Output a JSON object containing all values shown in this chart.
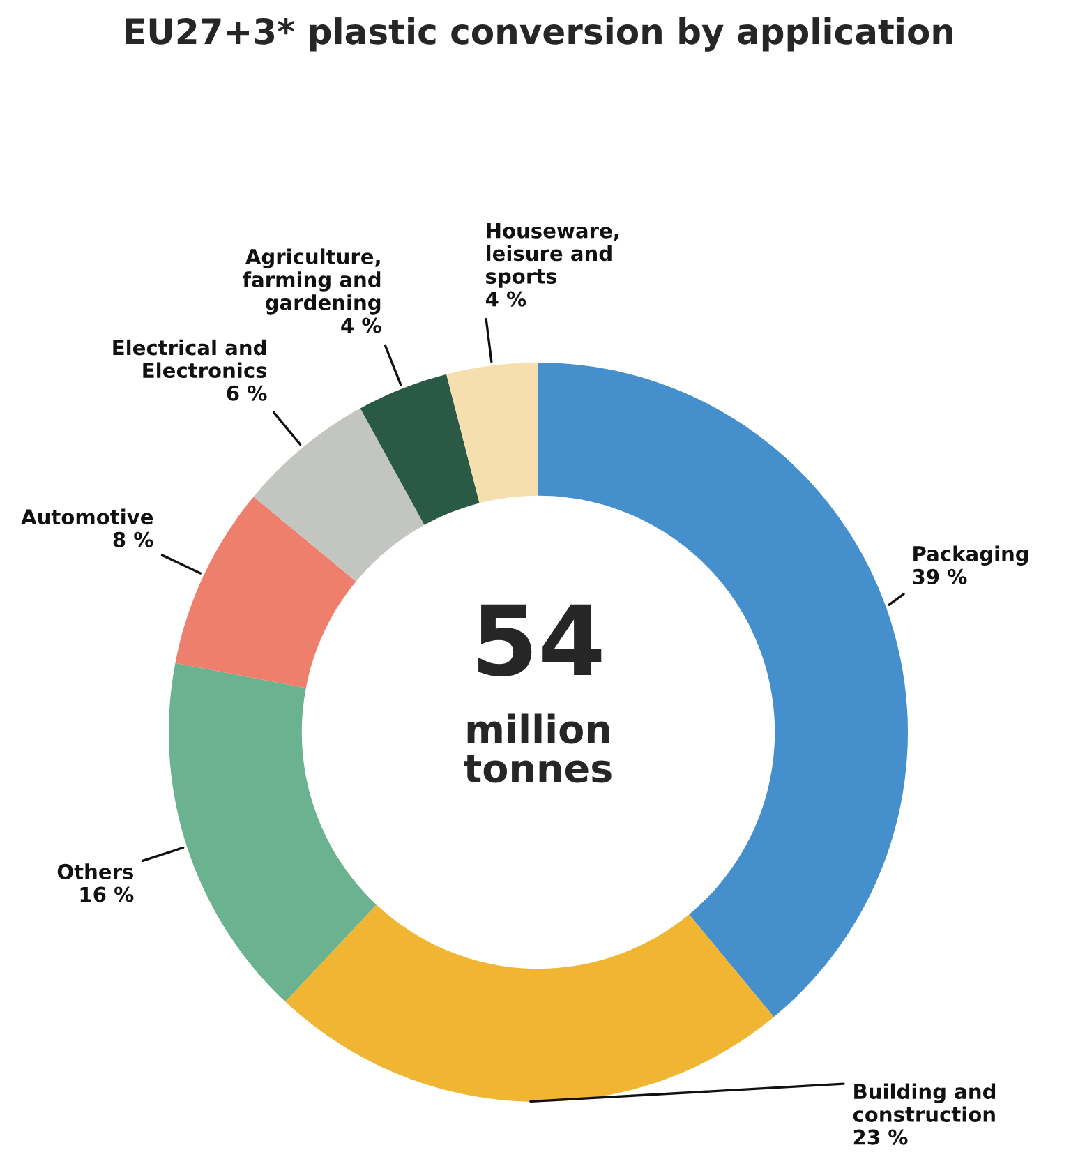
{
  "chart_data": {
    "type": "donut",
    "title": "EU27+3* plastic conversion by application",
    "categories": [
      "Packaging",
      "Building and\nconstruction",
      "Others",
      "Automotive",
      "Electrical and\nElectronics",
      "Agriculture,\nfarming and\ngardening",
      "Houseware,\nleisure and\nsports"
    ],
    "values": [
      39,
      23,
      16,
      8,
      6,
      4,
      4
    ],
    "value_labels": [
      "39 %",
      "23 %",
      "16 %",
      "8 %",
      "6 %",
      "4 %",
      "4 %"
    ],
    "colors": [
      "#448fcc",
      "#f0b532",
      "#6bb290",
      "#ef7f6d",
      "#c3c5c0",
      "#2a5a45",
      "#f6dfae"
    ],
    "annotations": [
      "54",
      "million\ntonnes"
    ],
    "legend": false
  }
}
